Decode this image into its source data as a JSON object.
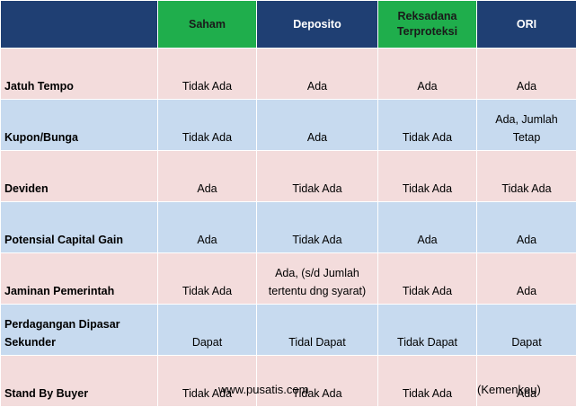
{
  "table": {
    "headers": [
      "",
      "Saham",
      "Deposito",
      "Reksadana\nTerproteksi",
      "ORI"
    ],
    "rows": [
      {
        "label": "Jatuh Tempo",
        "values": [
          "Tidak Ada",
          "Ada",
          "Ada",
          "Ada"
        ]
      },
      {
        "label": "Kupon/Bunga",
        "values": [
          "Tidak Ada",
          "Ada",
          "Tidak Ada",
          "Ada, Jumlah\nTetap"
        ]
      },
      {
        "label": "Deviden",
        "values": [
          "Ada",
          "Tidak Ada",
          "Tidak Ada",
          "Tidak Ada"
        ]
      },
      {
        "label": "Potensial Capital Gain",
        "values": [
          "Ada",
          "Tidak Ada",
          "Ada",
          "Ada"
        ]
      },
      {
        "label": "Jaminan Pemerintah",
        "values": [
          "Tidak Ada",
          "Ada, (s/d Jumlah\ntertentu dng syarat)",
          "Tidak Ada",
          "Ada"
        ]
      },
      {
        "label": "Perdagangan Dipasar\nSekunder",
        "values": [
          "Dapat",
          "Tidal Dapat",
          "Tidak Dapat",
          "Dapat"
        ]
      },
      {
        "label": "Stand By Buyer",
        "values": [
          "Tidak Ada",
          "Tidak Ada",
          "Tidak Ada",
          "Ada"
        ]
      }
    ]
  },
  "footer": {
    "website": "www.pusatis.com",
    "source": "(Kemenkeu)"
  },
  "colors": {
    "header_navy": "#1f3f73",
    "header_green": "#1fae4c",
    "row_pink": "#f3dcdc",
    "row_blue": "#c7daef"
  }
}
